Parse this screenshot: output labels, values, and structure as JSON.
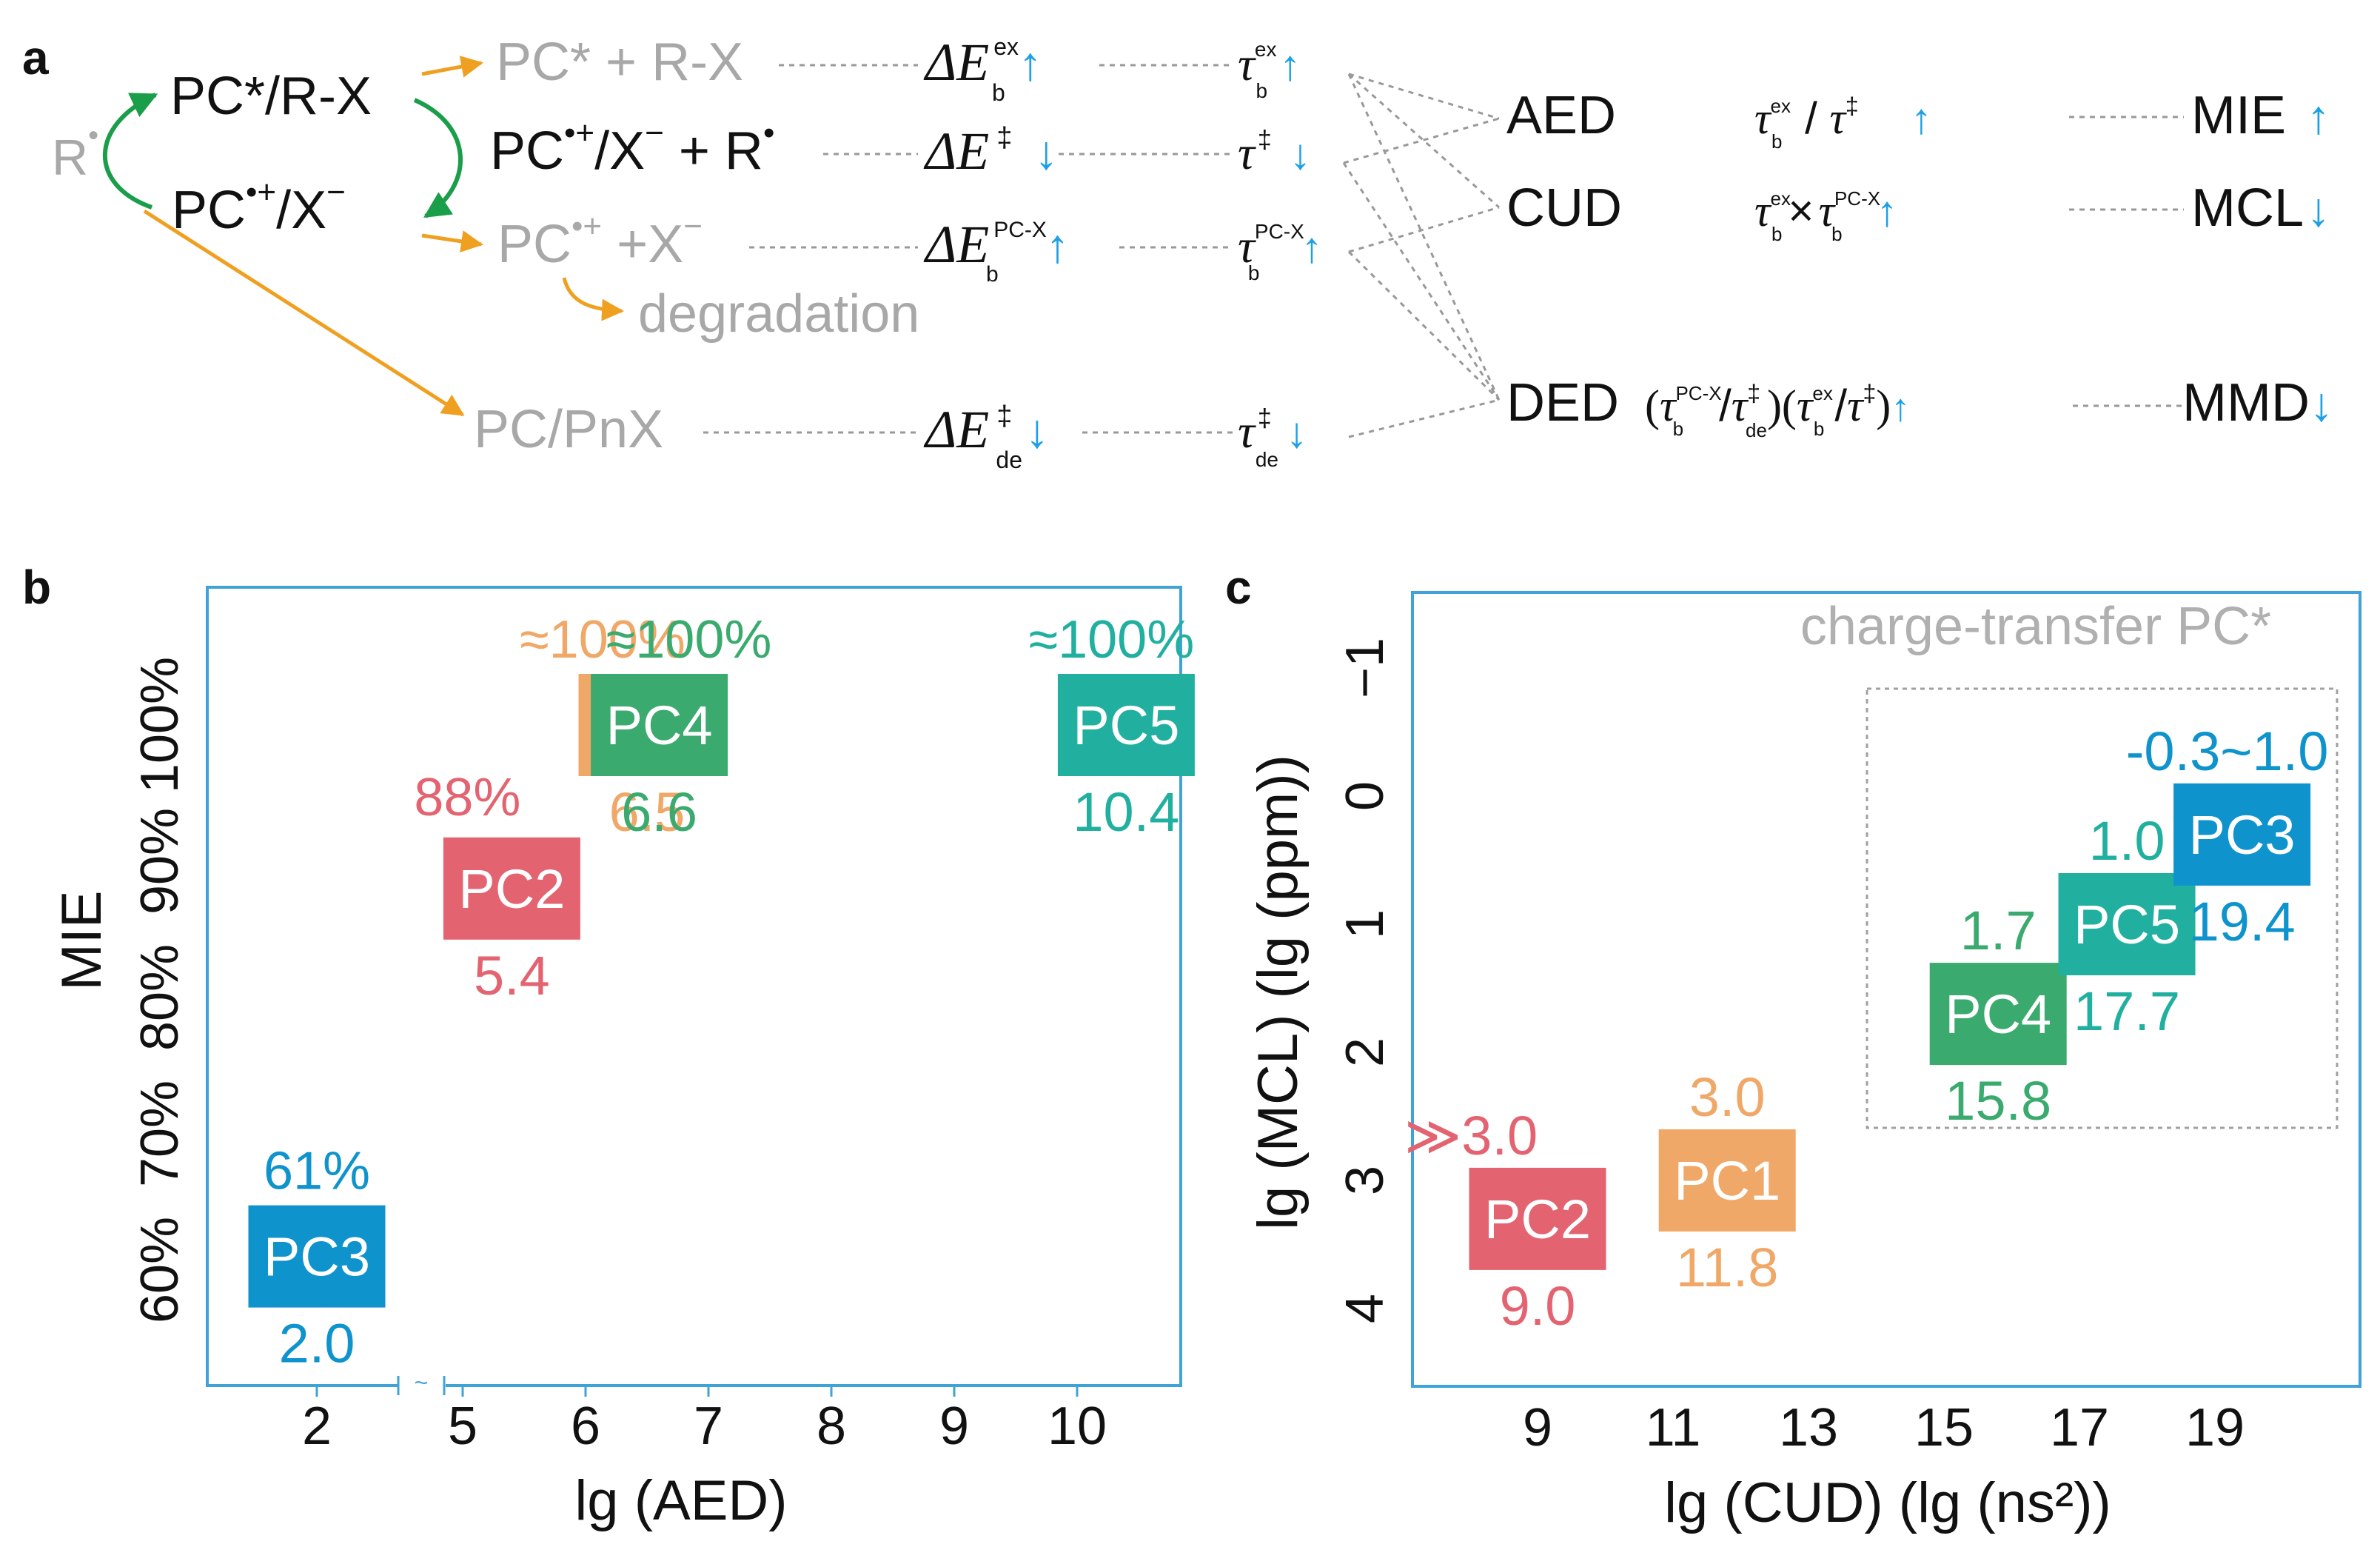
{
  "colors": {
    "PC1": "#f0a868",
    "PC2": "#e36470",
    "PC3": "#0e93cc",
    "PC4": "#3baa6e",
    "PC5": "#21b0a0",
    "axis": "#3fa3d9",
    "arrow_blue": "#1ea0e6",
    "gray": "#a8a8a8",
    "orange": "#f0a020",
    "green": "#1a9e4a",
    "black": "#111111"
  },
  "panel_a": {
    "label": "a",
    "radical": "R",
    "cycle_top": "PC*/R-X",
    "cycle_bottom_prefix": "PC",
    "cycle_bottom_suffix": "/X",
    "species_row1": "PC* + R-X",
    "species_row2_prefix": "PC",
    "species_row2_mid": "/X",
    "species_row2_suffix": " + R",
    "species_row3_prefix": "PC",
    "species_row3_suffix": " +X",
    "degradation": "degradation",
    "species_row4": "PC/PnX",
    "delta_E": "ΔE",
    "energy_sup_ex": "ex",
    "energy_sub_b": "b",
    "energy_sup_ts": "‡",
    "energy_sup_pcx": "PC-X",
    "energy_sub_de": "de",
    "tau": "τ",
    "up": "↑",
    "down": "↓",
    "metric_AED": "AED",
    "metric_CUD": "CUD",
    "metric_DED": "DED",
    "ratio_AED_slash": " / ",
    "ratio_CUD_times": "×",
    "open_paren": "(",
    "close_paren": ")",
    "slash": "/",
    "result_MIE": "MIE",
    "result_MCL": "MCL",
    "result_MMD": "MMD"
  },
  "chart_data": [
    {
      "panel": "b",
      "type": "scatter",
      "xlabel": "lg (AED)",
      "ylabel": "MIE",
      "x_ticks": [
        "2",
        "5",
        "6",
        "7",
        "8",
        "9",
        "10"
      ],
      "y_ticks": [
        "60%",
        "70%",
        "80%",
        "90%",
        "100%"
      ],
      "axis_break": "~",
      "points": [
        {
          "name": "PC3",
          "x": 2.0,
          "y": 61,
          "x_label": "2.0",
          "y_label": "61%"
        },
        {
          "name": "PC2",
          "x": 5.4,
          "y": 88,
          "x_label": "5.4",
          "y_label": "88%"
        },
        {
          "name": "PC1",
          "x": 6.5,
          "y": 100,
          "x_label": "6.5",
          "y_label": "≈100%"
        },
        {
          "name": "PC4",
          "x": 6.6,
          "y": 100,
          "x_label": "6.6",
          "y_label": "≈100%"
        },
        {
          "name": "PC5",
          "x": 10.4,
          "y": 100,
          "x_label": "10.4",
          "y_label": "≈100%"
        }
      ]
    },
    {
      "panel": "c",
      "type": "scatter",
      "xlabel": "lg (CUD) (lg (ns²))",
      "ylabel": "lg (MCL) (lg (ppm))",
      "x_ticks": [
        "9",
        "11",
        "13",
        "15",
        "17",
        "19"
      ],
      "y_ticks": [
        "−1",
        "0",
        "1",
        "2",
        "3",
        "4"
      ],
      "xlim": [
        7.2,
        21.3
      ],
      "ylim_inverted": [
        -1.8,
        4.5
      ],
      "annotation": "charge-transfer PC*",
      "points": [
        {
          "name": "PC2",
          "x": 9.0,
          "y": 3.3,
          "x_label": "9.0",
          "y_label": "≫3.0"
        },
        {
          "name": "PC1",
          "x": 11.8,
          "y": 3.0,
          "x_label": "11.8",
          "y_label": "3.0"
        },
        {
          "name": "PC4",
          "x": 15.8,
          "y": 1.7,
          "x_label": "15.8",
          "y_label": "1.7"
        },
        {
          "name": "PC5",
          "x": 17.7,
          "y": 1.0,
          "x_label": "17.7",
          "y_label": "1.0"
        },
        {
          "name": "PC3",
          "x": 19.4,
          "y": 0.3,
          "x_label": "19.4",
          "y_label": "-0.3~1.0"
        }
      ]
    }
  ]
}
